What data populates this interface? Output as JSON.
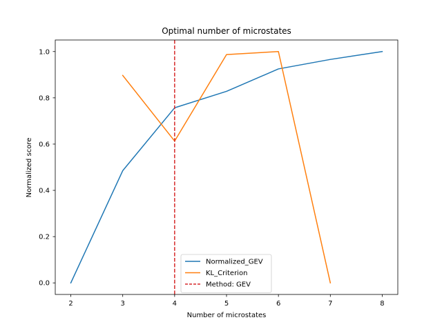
{
  "chart_data": {
    "type": "line",
    "title": "Optimal number of microstates",
    "xlabel": "Number of microstates",
    "ylabel": "Normalized score",
    "xlim": [
      1.7,
      8.3
    ],
    "ylim": [
      -0.05,
      1.05
    ],
    "xticks": [
      2,
      3,
      4,
      5,
      6,
      7,
      8
    ],
    "yticks": [
      0.0,
      0.2,
      0.4,
      0.6,
      0.8,
      1.0
    ],
    "ytick_labels": [
      "0.0",
      "0.2",
      "0.4",
      "0.6",
      "0.8",
      "1.0"
    ],
    "grid": false,
    "legend_position": "lower-center",
    "series": [
      {
        "name": "Normalized_GEV",
        "color": "#1f77b4",
        "style": "solid",
        "x": [
          2,
          3,
          4,
          5,
          6,
          7,
          8
        ],
        "values": [
          0.0,
          0.485,
          0.757,
          0.828,
          0.925,
          0.966,
          1.0
        ]
      },
      {
        "name": "KL_Criterion",
        "color": "#ff7f0e",
        "style": "solid",
        "x": [
          3,
          4,
          5,
          6,
          7
        ],
        "values": [
          0.897,
          0.613,
          0.987,
          1.0,
          0.0
        ]
      }
    ],
    "vlines": [
      {
        "name": "Method: GEV",
        "x": 4,
        "color": "#d62728",
        "style": "dashed"
      }
    ]
  }
}
